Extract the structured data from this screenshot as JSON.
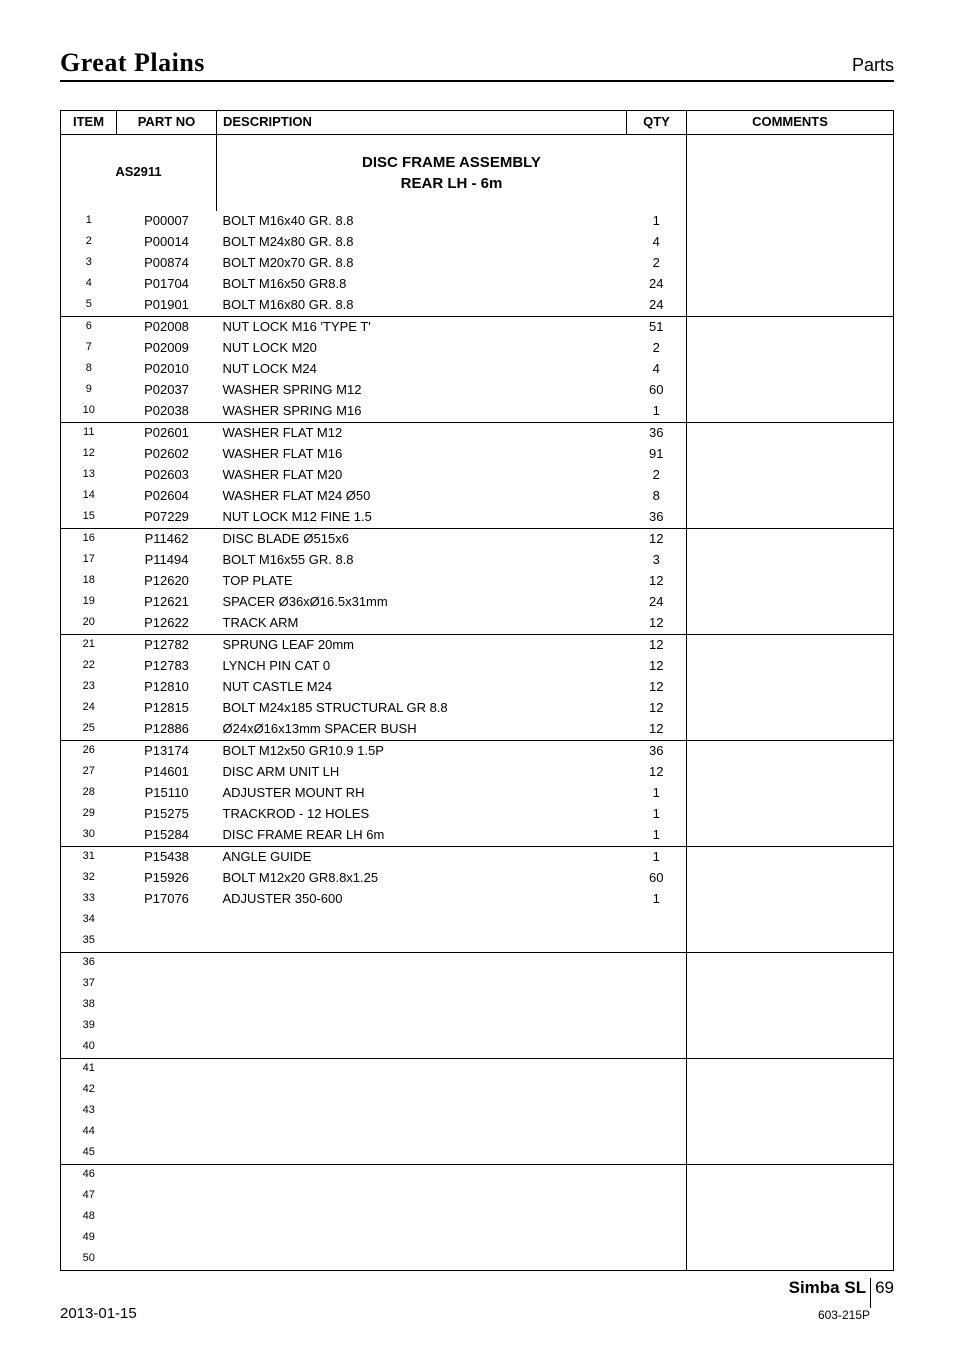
{
  "header": {
    "brand": "Great Plains",
    "section": "Parts"
  },
  "title_block": {
    "code": "AS2911",
    "title_line1": "DISC FRAME ASSEMBLY",
    "title_line2": "REAR LH - 6m"
  },
  "columns": {
    "item": "ITEM",
    "part": "PART NO",
    "desc": "DESCRIPTION",
    "qty": "QTY",
    "comm": "COMMENTS"
  },
  "rows": [
    {
      "i": "1",
      "p": "P00007",
      "d": "BOLT M16x40 GR. 8.8",
      "q": "1",
      "sep": false
    },
    {
      "i": "2",
      "p": "P00014",
      "d": "BOLT M24x80 GR. 8.8",
      "q": "4",
      "sep": false
    },
    {
      "i": "3",
      "p": "P00874",
      "d": "BOLT M20x70 GR. 8.8",
      "q": "2",
      "sep": false
    },
    {
      "i": "4",
      "p": "P01704",
      "d": "BOLT M16x50 GR8.8",
      "q": "24",
      "sep": false
    },
    {
      "i": "5",
      "p": "P01901",
      "d": "BOLT M16x80 GR. 8.8",
      "q": "24",
      "sep": false
    },
    {
      "i": "6",
      "p": "P02008",
      "d": "NUT LOCK M16 'TYPE T'",
      "q": "51",
      "sep": true
    },
    {
      "i": "7",
      "p": "P02009",
      "d": "NUT LOCK M20",
      "q": "2",
      "sep": false
    },
    {
      "i": "8",
      "p": "P02010",
      "d": "NUT LOCK M24",
      "q": "4",
      "sep": false
    },
    {
      "i": "9",
      "p": "P02037",
      "d": "WASHER SPRING M12",
      "q": "60",
      "sep": false
    },
    {
      "i": "10",
      "p": "P02038",
      "d": "WASHER SPRING M16",
      "q": "1",
      "sep": false
    },
    {
      "i": "11",
      "p": "P02601",
      "d": "WASHER FLAT M12",
      "q": "36",
      "sep": true
    },
    {
      "i": "12",
      "p": "P02602",
      "d": "WASHER FLAT M16",
      "q": "91",
      "sep": false
    },
    {
      "i": "13",
      "p": "P02603",
      "d": "WASHER FLAT M20",
      "q": "2",
      "sep": false
    },
    {
      "i": "14",
      "p": "P02604",
      "d": "WASHER FLAT M24 Ø50",
      "q": "8",
      "sep": false
    },
    {
      "i": "15",
      "p": "P07229",
      "d": "NUT LOCK M12 FINE 1.5",
      "q": "36",
      "sep": false
    },
    {
      "i": "16",
      "p": "P11462",
      "d": "DISC BLADE Ø515x6",
      "q": "12",
      "sep": true
    },
    {
      "i": "17",
      "p": "P11494",
      "d": "BOLT M16x55 GR. 8.8",
      "q": "3",
      "sep": false
    },
    {
      "i": "18",
      "p": "P12620",
      "d": "TOP PLATE",
      "q": "12",
      "sep": false
    },
    {
      "i": "19",
      "p": "P12621",
      "d": "SPACER Ø36xØ16.5x31mm",
      "q": "24",
      "sep": false
    },
    {
      "i": "20",
      "p": "P12622",
      "d": "TRACK ARM",
      "q": "12",
      "sep": false
    },
    {
      "i": "21",
      "p": "P12782",
      "d": "SPRUNG LEAF 20mm",
      "q": "12",
      "sep": true
    },
    {
      "i": "22",
      "p": "P12783",
      "d": "LYNCH PIN CAT 0",
      "q": "12",
      "sep": false
    },
    {
      "i": "23",
      "p": "P12810",
      "d": "NUT CASTLE M24",
      "q": "12",
      "sep": false
    },
    {
      "i": "24",
      "p": "P12815",
      "d": "BOLT M24x185 STRUCTURAL GR 8.8",
      "q": "12",
      "sep": false
    },
    {
      "i": "25",
      "p": "P12886",
      "d": "Ø24xØ16x13mm SPACER BUSH",
      "q": "12",
      "sep": false
    },
    {
      "i": "26",
      "p": "P13174",
      "d": "BOLT M12x50 GR10.9 1.5P",
      "q": "36",
      "sep": true
    },
    {
      "i": "27",
      "p": "P14601",
      "d": "DISC ARM UNIT LH",
      "q": "12",
      "sep": false
    },
    {
      "i": "28",
      "p": "P15110",
      "d": "ADJUSTER MOUNT RH",
      "q": "1",
      "sep": false
    },
    {
      "i": "29",
      "p": "P15275",
      "d": "TRACKROD - 12  HOLES",
      "q": "1",
      "sep": false
    },
    {
      "i": "30",
      "p": "P15284",
      "d": "DISC FRAME REAR LH 6m",
      "q": "1",
      "sep": false
    },
    {
      "i": "31",
      "p": "P15438",
      "d": "ANGLE GUIDE",
      "q": "1",
      "sep": true
    },
    {
      "i": "32",
      "p": "P15926",
      "d": "BOLT M12x20 GR8.8x1.25",
      "q": "60",
      "sep": false
    },
    {
      "i": "33",
      "p": "P17076",
      "d": "ADJUSTER 350-600",
      "q": "1",
      "sep": false
    },
    {
      "i": "34",
      "p": "",
      "d": "",
      "q": "",
      "sep": false
    },
    {
      "i": "35",
      "p": "",
      "d": "",
      "q": "",
      "sep": false
    },
    {
      "i": "36",
      "p": "",
      "d": "",
      "q": "",
      "sep": true
    },
    {
      "i": "37",
      "p": "",
      "d": "",
      "q": "",
      "sep": false
    },
    {
      "i": "38",
      "p": "",
      "d": "",
      "q": "",
      "sep": false
    },
    {
      "i": "39",
      "p": "",
      "d": "",
      "q": "",
      "sep": false
    },
    {
      "i": "40",
      "p": "",
      "d": "",
      "q": "",
      "sep": false
    },
    {
      "i": "41",
      "p": "",
      "d": "",
      "q": "",
      "sep": true
    },
    {
      "i": "42",
      "p": "",
      "d": "",
      "q": "",
      "sep": false
    },
    {
      "i": "43",
      "p": "",
      "d": "",
      "q": "",
      "sep": false
    },
    {
      "i": "44",
      "p": "",
      "d": "",
      "q": "",
      "sep": false
    },
    {
      "i": "45",
      "p": "",
      "d": "",
      "q": "",
      "sep": false
    },
    {
      "i": "46",
      "p": "",
      "d": "",
      "q": "",
      "sep": true
    },
    {
      "i": "47",
      "p": "",
      "d": "",
      "q": "",
      "sep": false
    },
    {
      "i": "48",
      "p": "",
      "d": "",
      "q": "",
      "sep": false
    },
    {
      "i": "49",
      "p": "",
      "d": "",
      "q": "",
      "sep": false
    },
    {
      "i": "50",
      "p": "",
      "d": "",
      "q": "",
      "sep": false
    }
  ],
  "footer": {
    "date": "2013-01-15",
    "model": "Simba SL",
    "page": "69",
    "doc": "603-215P"
  }
}
